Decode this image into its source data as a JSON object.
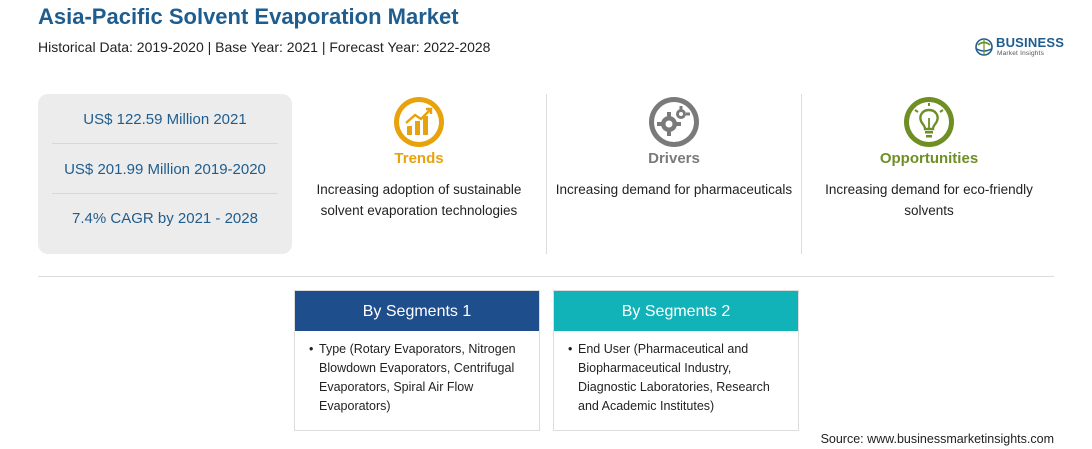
{
  "header": {
    "title": "Asia-Pacific Solvent Evaporation Market",
    "subtitle": "Historical Data: 2019-2020 | Base Year: 2021 | Forecast Year: 2022-2028"
  },
  "logo": {
    "word": "BUSINESS",
    "sub": "Market Insights",
    "icon": "globe-leaf-icon"
  },
  "stats": [
    {
      "text": "US$ 122.59 Million 2021"
    },
    {
      "text": "US$ 201.99 Million 2019-2020"
    },
    {
      "text": "7.4% CAGR by 2021 - 2028"
    }
  ],
  "features": {
    "trends": {
      "heading": "Trends",
      "description": "Increasing adoption of sustainable solvent evaporation technologies",
      "color": "#e8a20c",
      "icon": "trend-chart-icon"
    },
    "drivers": {
      "heading": "Drivers",
      "description": "Increasing demand for pharmaceuticals",
      "color": "#7a7a7a",
      "icon": "gears-icon"
    },
    "opportunities": {
      "heading": "Opportunities",
      "description": "Increasing demand for eco-friendly solvents",
      "color": "#6f8f25",
      "icon": "lightbulb-icon"
    }
  },
  "segments": [
    {
      "heading": "By Segments 1",
      "color": "#1f4e8c",
      "items": [
        "Type (Rotary Evaporators, Nitrogen Blowdown Evaporators, Centrifugal Evaporators, Spiral Air Flow Evaporators)"
      ]
    },
    {
      "heading": "By Segments 2",
      "color": "#12b3b8",
      "items": [
        "End User (Pharmaceutical and Biopharmaceutical Industry, Diagnostic Laboratories, Research and Academic Institutes)"
      ]
    }
  ],
  "source": "Source: www.businessmarketinsights.com"
}
